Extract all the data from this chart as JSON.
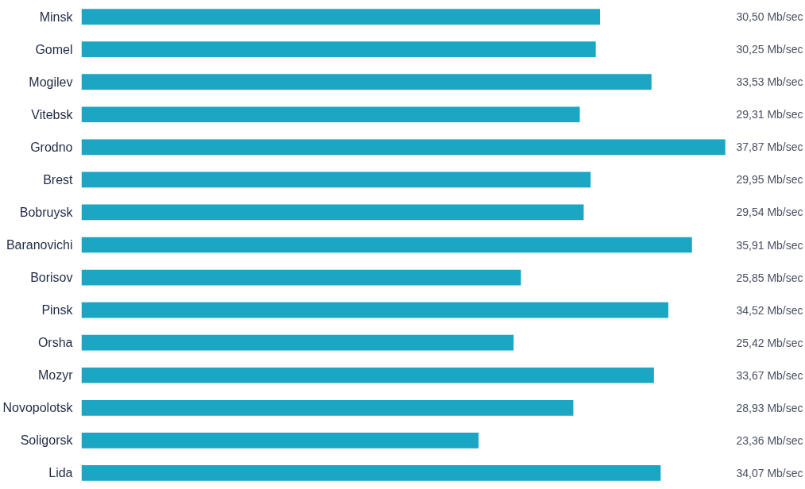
{
  "chart_data": {
    "type": "bar",
    "orientation": "horizontal",
    "categories": [
      "Minsk",
      "Gomel",
      "Mogilev",
      "Vitebsk",
      "Grodno",
      "Brest",
      "Bobruysk",
      "Baranovichi",
      "Borisov",
      "Pinsk",
      "Orsha",
      "Mozyr",
      "Novopolotsk",
      "Soligorsk",
      "Lida"
    ],
    "values": [
      30.5,
      30.25,
      33.53,
      29.31,
      37.87,
      29.95,
      29.54,
      35.91,
      25.85,
      34.52,
      25.42,
      33.67,
      28.93,
      23.36,
      34.07
    ],
    "value_labels": [
      "30,50 Mb/sec",
      "30,25 Mb/sec",
      "33,53 Mb/sec",
      "29,31 Mb/sec",
      "37,87 Mb/sec",
      "29,95 Mb/sec",
      "29,54 Mb/sec",
      "35,91 Mb/sec",
      "25,85 Mb/sec",
      "34,52 Mb/sec",
      "25,42 Mb/sec",
      "33,67 Mb/sec",
      "28,93 Mb/sec",
      "23,36 Mb/sec",
      "34,07 Mb/sec"
    ],
    "color": "#1ba6c4",
    "xlim": [
      0,
      38
    ],
    "tick_labels": "y"
  }
}
